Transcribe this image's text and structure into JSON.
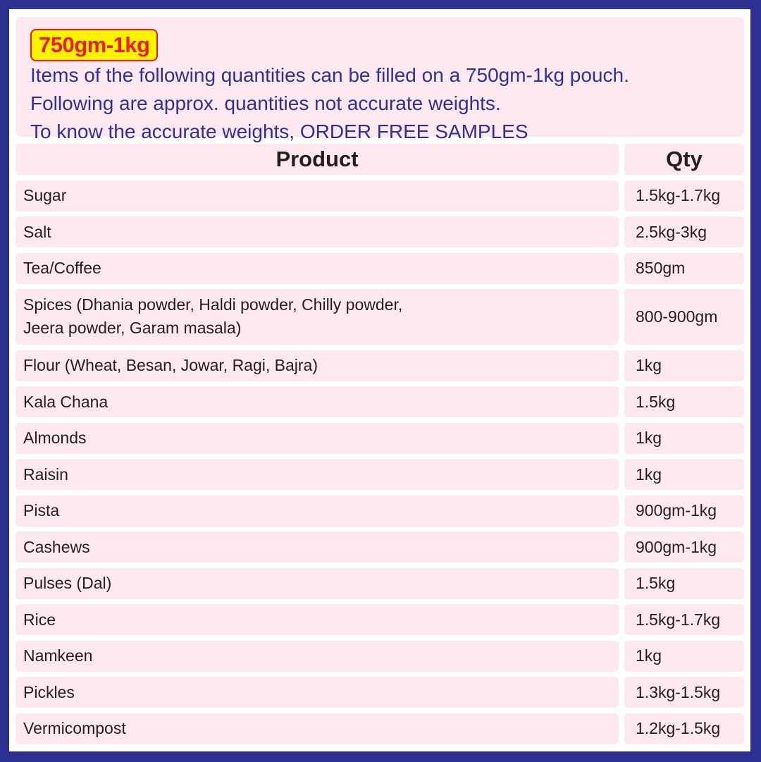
{
  "colors": {
    "frame": "#2e3192",
    "panel": "#fde8f0",
    "badge_bg": "#fff200",
    "badge_text": "#ed1c24",
    "intro_text": "#2e3192"
  },
  "intro": {
    "badge": "750gm-1kg",
    "lines": [
      "Items of the following quantities can be filled on a 750gm-1kg pouch.",
      "Following are approx. quantities not accurate weights.",
      "To know the accurate weights, ORDER FREE SAMPLES"
    ]
  },
  "table": {
    "headers": [
      "Product",
      "Qty"
    ],
    "rows": [
      {
        "product": "Sugar",
        "qty": "1.5kg-1.7kg"
      },
      {
        "product": "Salt",
        "qty": "2.5kg-3kg"
      },
      {
        "product": "Tea/Coffee",
        "qty": "850gm"
      },
      {
        "product": "Spices (Dhania powder, Haldi powder, Chilly powder,",
        "product2": "Jeera powder, Garam masala)",
        "qty": "800-900gm"
      },
      {
        "product": "Flour (Wheat, Besan, Jowar, Ragi, Bajra)",
        "qty": "1kg"
      },
      {
        "product": "Kala Chana",
        "qty": "1.5kg"
      },
      {
        "product": "Almonds",
        "qty": "1kg"
      },
      {
        "product": "Raisin",
        "qty": "1kg"
      },
      {
        "product": "Pista",
        "qty": "900gm-1kg"
      },
      {
        "product": "Cashews",
        "qty": "900gm-1kg"
      },
      {
        "product": "Pulses (Dal)",
        "qty": "1.5kg"
      },
      {
        "product": "Rice",
        "qty": "1.5kg-1.7kg"
      },
      {
        "product": "Namkeen",
        "qty": "1kg"
      },
      {
        "product": "Pickles",
        "qty": "1.3kg-1.5kg"
      },
      {
        "product": "Vermicompost",
        "qty": "1.2kg-1.5kg"
      }
    ]
  }
}
